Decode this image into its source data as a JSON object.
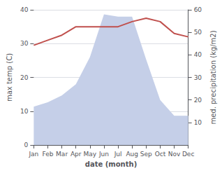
{
  "chart_data": {
    "type": "line",
    "categories": [
      "Jan",
      "Feb",
      "Mar",
      "Apr",
      "May",
      "Jun",
      "Jul",
      "Aug",
      "Sep",
      "Oct",
      "Nov",
      "Dec"
    ],
    "series": [
      {
        "type": "area",
        "color": "#c5cfe8",
        "axis": "y2",
        "values": [
          17,
          19,
          22,
          27,
          39,
          58,
          57,
          57,
          38,
          20,
          13,
          13
        ]
      },
      {
        "type": "line",
        "color": "#c0504d",
        "values": [
          29.5,
          31.0,
          32.5,
          35.0,
          35.0,
          35.0,
          35.0,
          36.5,
          37.5,
          36.5,
          33.0,
          32.0
        ]
      }
    ],
    "xlabel": "date (month)",
    "ylabel": "max temp (C)",
    "y2label": "med. precipitation (kg/m2)",
    "ylim": [
      0,
      40
    ],
    "yticks": [
      0,
      10,
      20,
      30,
      40
    ],
    "y2lim": [
      0,
      60
    ],
    "y2ticks": [
      10,
      20,
      30,
      40,
      50,
      60
    ],
    "grid": true
  }
}
